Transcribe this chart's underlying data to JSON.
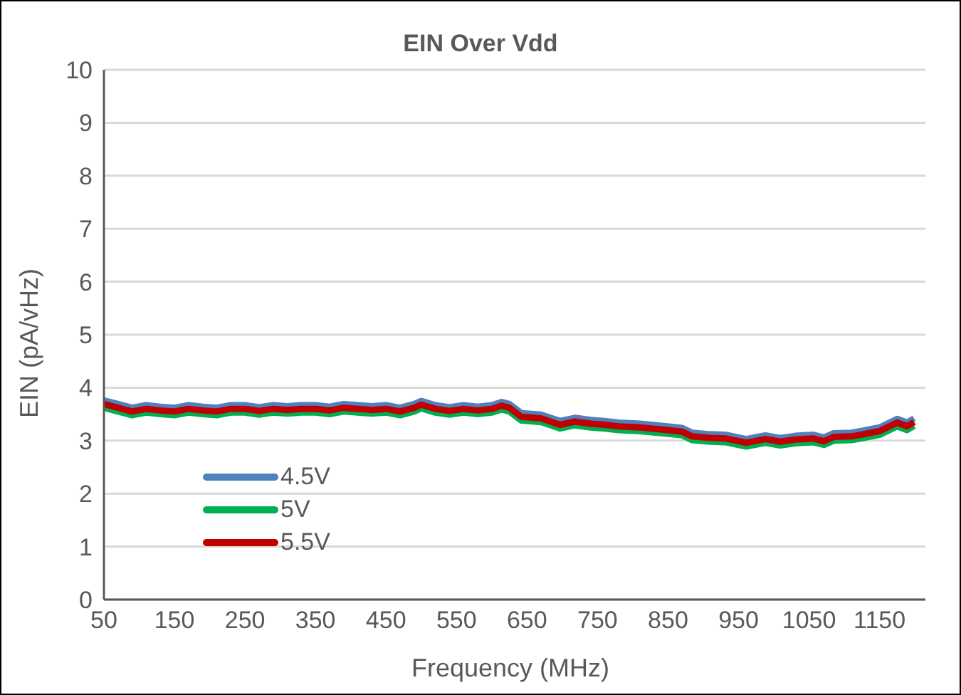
{
  "chart_data": {
    "type": "line",
    "title": "EIN Over Vdd",
    "xlabel": "Frequency (MHz)",
    "ylabel": "EIN (pA/vHz)",
    "x": [
      50,
      70,
      90,
      110,
      130,
      150,
      170,
      190,
      210,
      230,
      250,
      270,
      290,
      310,
      330,
      350,
      370,
      390,
      410,
      430,
      450,
      470,
      490,
      500,
      520,
      540,
      560,
      580,
      600,
      614,
      625,
      642,
      670,
      697,
      718,
      740,
      760,
      780,
      810,
      849,
      870,
      884,
      910,
      932,
      961,
      988,
      1009,
      1030,
      1056,
      1071,
      1085,
      1110,
      1127,
      1150,
      1175,
      1189,
      1199
    ],
    "series": [
      {
        "name": "4.5V",
        "color": "#4f81bd",
        "values": [
          3.76,
          3.69,
          3.62,
          3.67,
          3.64,
          3.62,
          3.67,
          3.64,
          3.62,
          3.67,
          3.67,
          3.63,
          3.67,
          3.65,
          3.67,
          3.67,
          3.64,
          3.69,
          3.67,
          3.65,
          3.67,
          3.62,
          3.69,
          3.75,
          3.67,
          3.63,
          3.67,
          3.64,
          3.67,
          3.73,
          3.69,
          3.52,
          3.49,
          3.37,
          3.43,
          3.39,
          3.37,
          3.34,
          3.32,
          3.27,
          3.24,
          3.15,
          3.12,
          3.11,
          3.03,
          3.1,
          3.05,
          3.09,
          3.11,
          3.06,
          3.14,
          3.15,
          3.19,
          3.25,
          3.41,
          3.34,
          3.42
        ]
      },
      {
        "name": "5V",
        "color": "#00b050",
        "values": [
          3.62,
          3.55,
          3.48,
          3.53,
          3.5,
          3.48,
          3.53,
          3.5,
          3.48,
          3.53,
          3.53,
          3.49,
          3.53,
          3.51,
          3.53,
          3.53,
          3.5,
          3.55,
          3.53,
          3.51,
          3.53,
          3.48,
          3.55,
          3.61,
          3.53,
          3.49,
          3.53,
          3.5,
          3.53,
          3.59,
          3.55,
          3.38,
          3.35,
          3.23,
          3.29,
          3.25,
          3.23,
          3.2,
          3.18,
          3.13,
          3.1,
          3.01,
          2.98,
          2.97,
          2.89,
          2.96,
          2.91,
          2.95,
          2.97,
          2.92,
          3.0,
          3.01,
          3.05,
          3.11,
          3.27,
          3.2,
          3.28
        ]
      },
      {
        "name": "5.5V",
        "color": "#c00000",
        "values": [
          3.69,
          3.62,
          3.55,
          3.6,
          3.57,
          3.55,
          3.6,
          3.57,
          3.55,
          3.6,
          3.6,
          3.56,
          3.6,
          3.58,
          3.6,
          3.6,
          3.57,
          3.62,
          3.6,
          3.58,
          3.6,
          3.55,
          3.62,
          3.68,
          3.6,
          3.56,
          3.6,
          3.57,
          3.6,
          3.66,
          3.62,
          3.45,
          3.42,
          3.3,
          3.36,
          3.32,
          3.3,
          3.27,
          3.25,
          3.2,
          3.17,
          3.08,
          3.05,
          3.04,
          2.96,
          3.03,
          2.98,
          3.02,
          3.04,
          2.99,
          3.07,
          3.08,
          3.12,
          3.18,
          3.34,
          3.27,
          3.35
        ]
      }
    ],
    "xlim": [
      50,
      1215
    ],
    "xticks": [
      50,
      150,
      250,
      350,
      450,
      550,
      650,
      750,
      850,
      950,
      1050,
      1150
    ],
    "ylim": [
      0,
      10
    ],
    "yticks": [
      0,
      1,
      2,
      3,
      4,
      5,
      6,
      7,
      8,
      9,
      10
    ],
    "grid": "y",
    "legend": "bottom left",
    "marker": "none",
    "line_style": "solid"
  }
}
